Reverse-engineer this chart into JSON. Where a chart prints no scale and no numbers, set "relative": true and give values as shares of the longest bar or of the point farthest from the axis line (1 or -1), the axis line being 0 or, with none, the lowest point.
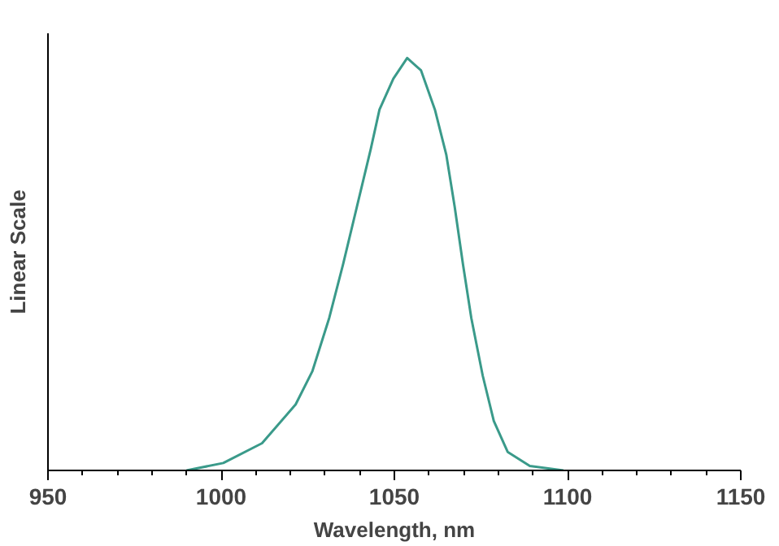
{
  "chart_data": {
    "type": "line",
    "xlabel": "Wavelength, nm",
    "ylabel": "Linear Scale",
    "relative": true,
    "xlim": [
      950,
      1150
    ],
    "xticks": [
      950,
      1000,
      1050,
      1100,
      1150
    ],
    "grid": false,
    "series": [
      {
        "color": "#3a9a8a",
        "x": [
          990,
          1000.6,
          1011.8,
          1021.5,
          1026.3,
          1031.2,
          1035.2,
          1039.2,
          1043.2,
          1045.7,
          1049.7,
          1053.7,
          1057.7,
          1061.7,
          1065,
          1067.4,
          1069.8,
          1072.2,
          1075.5,
          1078.7,
          1082.7,
          1089.1,
          1098.8
        ],
        "values": [
          0,
          0.018,
          0.066,
          0.16,
          0.24,
          0.37,
          0.5,
          0.64,
          0.78,
          0.875,
          0.95,
          1.0,
          0.97,
          0.875,
          0.765,
          0.64,
          0.5,
          0.37,
          0.23,
          0.12,
          0.045,
          0.011,
          0
        ]
      }
    ]
  }
}
